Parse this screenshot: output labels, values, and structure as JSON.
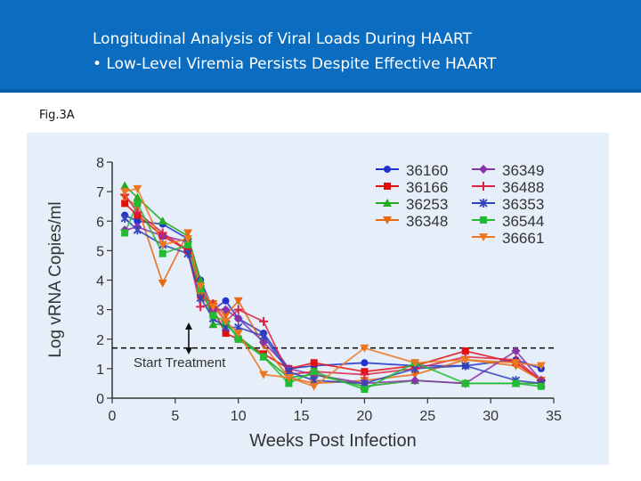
{
  "header": {
    "title_line1": "Longitudinal Analysis of Viral Loads During HAART",
    "title_line2": "• Low-Level Viremia Persists Despite Effective HAART"
  },
  "figure_label": "Fig.3A",
  "colors": {
    "header_bg": "#0b6cc0",
    "panel_bg": "#e6eef9"
  },
  "chart_data": {
    "type": "line",
    "xlabel": "Weeks Post Infection",
    "ylabel": "Log vRNA Copies/ml",
    "xlim": [
      0,
      35
    ],
    "ylim": [
      0,
      8
    ],
    "xticks": [
      0,
      5,
      10,
      15,
      20,
      25,
      30,
      35
    ],
    "yticks": [
      0,
      1,
      2,
      3,
      4,
      5,
      6,
      7,
      8
    ],
    "grid": false,
    "legend": "top-right",
    "annotation": {
      "text": "Start Treatment",
      "x": 6,
      "threshold_y": 1.7
    },
    "series": [
      {
        "name": "36160",
        "color": "#2233cc",
        "marker": "circle",
        "x": [
          1,
          2,
          4,
          6,
          7,
          8,
          9,
          10,
          12,
          14,
          16,
          20,
          24,
          28,
          32,
          34
        ],
        "y": [
          6.2,
          6.0,
          5.9,
          5.4,
          4.0,
          3.0,
          3.3,
          2.7,
          2.2,
          1.0,
          1.1,
          1.2,
          1.1,
          1.1,
          1.3,
          1.0
        ]
      },
      {
        "name": "36166",
        "color": "#e01010",
        "marker": "square",
        "x": [
          1,
          2,
          4,
          6,
          7,
          8,
          9,
          10,
          12,
          14,
          16,
          20,
          24,
          28,
          32,
          34
        ],
        "y": [
          6.6,
          6.2,
          5.5,
          5.0,
          3.5,
          3.0,
          2.2,
          2.0,
          1.5,
          1.0,
          1.2,
          0.9,
          1.1,
          1.6,
          1.2,
          0.6
        ]
      },
      {
        "name": "36253",
        "color": "#22aa22",
        "marker": "triangle",
        "x": [
          1,
          2,
          4,
          6,
          7,
          8,
          9,
          10,
          12,
          14,
          16,
          20,
          24,
          28,
          32,
          34
        ],
        "y": [
          7.2,
          6.8,
          6.0,
          5.5,
          4.0,
          2.5,
          2.5,
          2.1,
          1.4,
          0.7,
          0.8,
          0.4,
          0.6,
          0.5,
          0.5,
          0.5
        ]
      },
      {
        "name": "36348",
        "color": "#e86a10",
        "marker": "triangle-down",
        "x": [
          1,
          2,
          4,
          6,
          7,
          8,
          9,
          10,
          12,
          14,
          16,
          20,
          24,
          28,
          32,
          34
        ],
        "y": [
          6.8,
          6.5,
          3.9,
          5.6,
          3.5,
          3.2,
          2.8,
          3.3,
          1.8,
          0.7,
          0.5,
          0.6,
          0.8,
          1.3,
          1.1,
          0.6
        ]
      },
      {
        "name": "36349",
        "color": "#8833aa",
        "marker": "diamond",
        "x": [
          1,
          2,
          4,
          6,
          7,
          8,
          9,
          10,
          12,
          14,
          16,
          20,
          24,
          28,
          32,
          34
        ],
        "y": [
          5.7,
          5.8,
          5.5,
          5.3,
          3.8,
          3.0,
          3.0,
          2.7,
          1.9,
          1.0,
          0.8,
          0.5,
          0.6,
          0.5,
          1.6,
          0.6
        ]
      },
      {
        "name": "36488",
        "color": "#dd2244",
        "marker": "plus",
        "x": [
          1,
          2,
          4,
          6,
          7,
          8,
          9,
          10,
          12,
          14,
          16,
          20,
          24,
          28,
          32,
          34
        ],
        "y": [
          6.9,
          6.3,
          5.6,
          5.0,
          3.1,
          3.2,
          2.6,
          3.0,
          2.6,
          0.8,
          0.9,
          0.8,
          1.0,
          1.4,
          1.3,
          0.6
        ]
      },
      {
        "name": "36353",
        "color": "#3344bb",
        "marker": "star",
        "x": [
          1,
          2,
          4,
          6,
          7,
          8,
          9,
          10,
          12,
          14,
          16,
          20,
          24,
          28,
          32,
          34
        ],
        "y": [
          6.1,
          5.7,
          5.2,
          4.9,
          3.4,
          2.7,
          2.4,
          2.4,
          2.1,
          0.9,
          0.6,
          0.5,
          1.0,
          1.1,
          0.6,
          0.5
        ]
      },
      {
        "name": "36544",
        "color": "#22bb33",
        "marker": "square",
        "x": [
          1,
          2,
          4,
          6,
          7,
          8,
          9,
          10,
          12,
          14,
          16,
          20,
          24,
          28,
          32,
          34
        ],
        "y": [
          5.6,
          6.6,
          4.9,
          5.2,
          3.7,
          2.8,
          2.6,
          2.0,
          1.4,
          0.5,
          0.9,
          0.3,
          1.2,
          0.5,
          0.5,
          0.4
        ]
      },
      {
        "name": "36661",
        "color": "#ee7722",
        "marker": "triangle-down",
        "x": [
          1,
          2,
          4,
          6,
          7,
          8,
          9,
          10,
          12,
          14,
          16,
          20,
          24,
          28,
          32,
          34
        ],
        "y": [
          7.0,
          7.1,
          5.2,
          5.4,
          3.8,
          3.1,
          2.6,
          2.2,
          0.8,
          0.7,
          0.4,
          1.7,
          1.2,
          1.3,
          1.2,
          1.1
        ]
      }
    ]
  }
}
